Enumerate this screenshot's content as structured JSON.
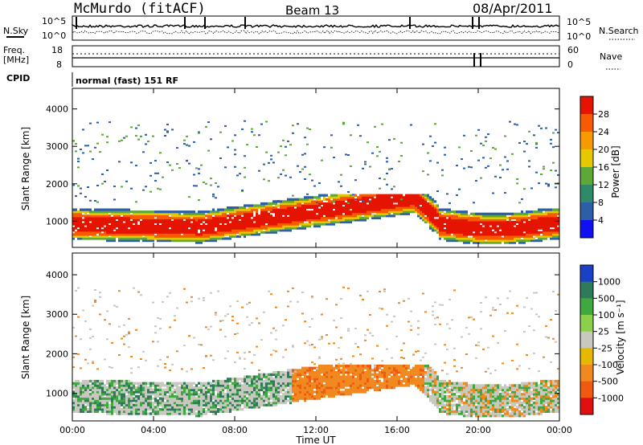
{
  "header": {
    "station": "McMurdo (fitACF)",
    "beam": "Beam 13",
    "date": "08/Apr/2011"
  },
  "top_panels": {
    "nsky_label": "N.Sky",
    "nsearch_label": "N.Search",
    "nsky_ticks": [
      "10^5",
      "10^0"
    ],
    "nsearch_ticks": [
      "10^5",
      "10^0"
    ],
    "freq_label": "Freq.",
    "freq_unit": "[MHz]",
    "freq_ticks": [
      "18",
      "8"
    ],
    "nave_label": "Nave",
    "nave_ticks": [
      "60",
      "0"
    ],
    "cpid_label": "CPID",
    "cpid_value": "normal (fast) 151 RF"
  },
  "chart_data": [
    {
      "type": "heatmap",
      "name": "power",
      "ylabel": "Slant Range [km]",
      "ylim": [
        300,
        4550
      ],
      "yticks": [
        "1000",
        "2000",
        "3000",
        "4000"
      ],
      "colorbar": {
        "label": "Power [dB]",
        "ticks": [
          "28",
          "24",
          "20",
          "16",
          "12",
          "8",
          "4"
        ],
        "colors": [
          "#e51400",
          "#f75a00",
          "#f79a00",
          "#e6c800",
          "#5ea83a",
          "#2f8a6a",
          "#2d5fa8",
          "#1010f0"
        ]
      }
    },
    {
      "type": "heatmap",
      "name": "velocity",
      "ylabel": "Slant Range [km]",
      "ylim": [
        300,
        4550
      ],
      "yticks": [
        "1000",
        "2000",
        "3000",
        "4000"
      ],
      "colorbar": {
        "label": "Velocity [m s⁻¹]",
        "ticks": [
          "1000",
          "500",
          "100",
          "25",
          "-25",
          "-100",
          "-500",
          "-1000"
        ],
        "colors": [
          "#1a40c8",
          "#2f7a5a",
          "#3fa83f",
          "#8bd048",
          "#c8c8c0",
          "#e6b800",
          "#f08a20",
          "#f05a10",
          "#e01010"
        ]
      }
    }
  ],
  "xaxis": {
    "label": "Time UT",
    "ticks": [
      "00:00",
      "04:00",
      "08:00",
      "12:00",
      "16:00",
      "20:00",
      "00:00"
    ]
  }
}
